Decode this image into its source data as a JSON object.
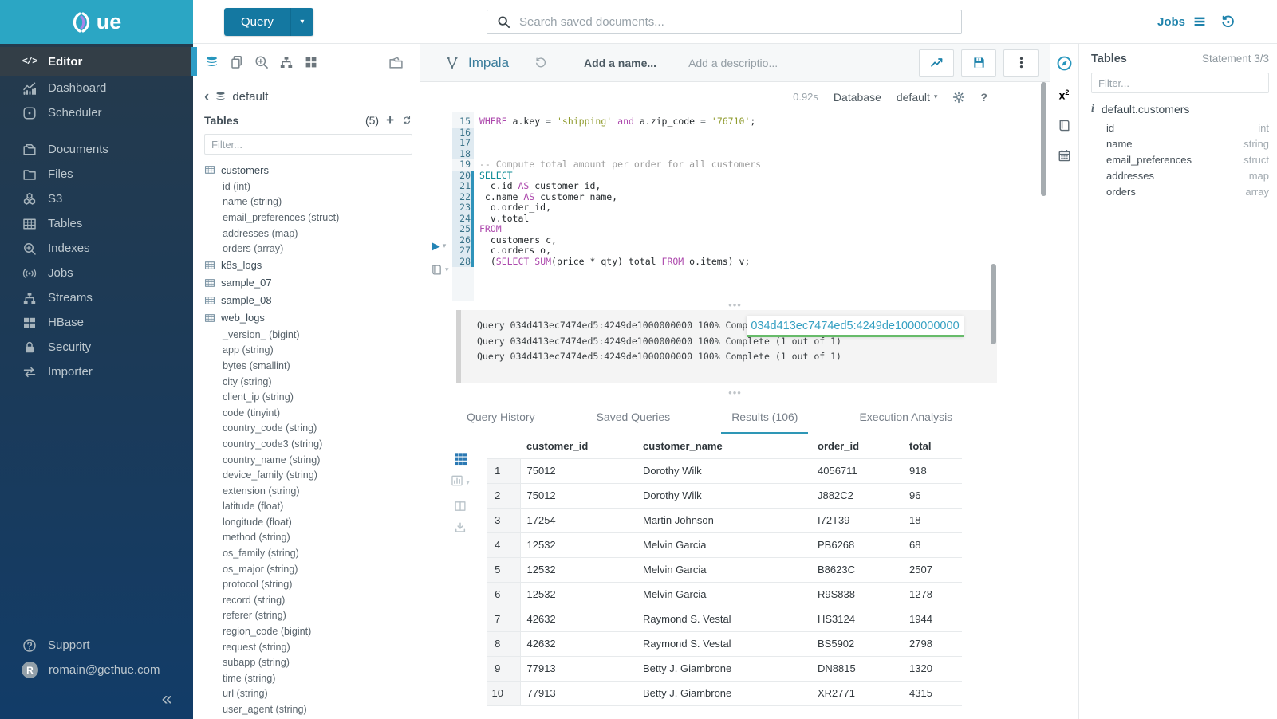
{
  "topbar": {
    "query_label": "Query",
    "search_placeholder": "Search saved documents...",
    "jobs_label": "Jobs"
  },
  "sidebar": {
    "logo_text": "ue",
    "items": [
      {
        "label": "Editor",
        "icon": "editor",
        "active": true
      },
      {
        "label": "Dashboard",
        "icon": "dashboard"
      },
      {
        "label": "Scheduler",
        "icon": "scheduler",
        "gap_after": true
      },
      {
        "label": "Documents",
        "icon": "documents"
      },
      {
        "label": "Files",
        "icon": "files"
      },
      {
        "label": "S3",
        "icon": "s3"
      },
      {
        "label": "Tables",
        "icon": "tables"
      },
      {
        "label": "Indexes",
        "icon": "indexes"
      },
      {
        "label": "Jobs",
        "icon": "jobs"
      },
      {
        "label": "Streams",
        "icon": "streams"
      },
      {
        "label": "HBase",
        "icon": "hbase"
      },
      {
        "label": "Security",
        "icon": "security"
      },
      {
        "label": "Importer",
        "icon": "importer"
      }
    ],
    "support_label": "Support",
    "user_email": "romain@gethue.com",
    "user_initial": "R",
    "collapse_glyph": "«"
  },
  "left_assist": {
    "database": "default",
    "title": "Tables",
    "count": "(5)",
    "filter_placeholder": "Filter...",
    "tables": [
      {
        "name": "customers",
        "columns": [
          "id (int)",
          "name (string)",
          "email_preferences (struct)",
          "addresses (map)",
          "orders (array)"
        ]
      },
      {
        "name": "k8s_logs",
        "columns": []
      },
      {
        "name": "sample_07",
        "columns": []
      },
      {
        "name": "sample_08",
        "columns": []
      },
      {
        "name": "web_logs",
        "columns": [
          "_version_ (bigint)",
          "app (string)",
          "bytes (smallint)",
          "city (string)",
          "client_ip (string)",
          "code (tinyint)",
          "country_code (string)",
          "country_code3 (string)",
          "country_name (string)",
          "device_family (string)",
          "extension (string)",
          "latitude (float)",
          "longitude (float)",
          "method (string)",
          "os_family (string)",
          "os_major (string)",
          "protocol (string)",
          "record (string)",
          "referer (string)",
          "region_code (bigint)",
          "request (string)",
          "subapp (string)",
          "time (string)",
          "url (string)",
          "user_agent (string)"
        ]
      }
    ]
  },
  "editor": {
    "engine": "Impala",
    "name_placeholder": "Add a name...",
    "description_placeholder": "Add a descriptio...",
    "duration": "0.92s",
    "database_label": "Database",
    "database_value": "default",
    "code_lines": [
      {
        "n": 15,
        "seg": [
          [
            "kw",
            "WHERE"
          ],
          [
            "pl",
            " a.key "
          ],
          [
            "op",
            "="
          ],
          [
            "pl",
            " "
          ],
          [
            "str",
            "'shipping'"
          ],
          [
            "pl",
            " "
          ],
          [
            "kw",
            "and"
          ],
          [
            "pl",
            " a.zip_code "
          ],
          [
            "op",
            "="
          ],
          [
            "pl",
            " "
          ],
          [
            "str",
            "'76710'"
          ],
          [
            "pl",
            ";"
          ]
        ]
      },
      {
        "n": 16,
        "hl": true,
        "seg": []
      },
      {
        "n": 17,
        "hl": true,
        "seg": []
      },
      {
        "n": 18,
        "hl": true,
        "seg": []
      },
      {
        "n": 19,
        "seg": [
          [
            "cm",
            "-- Compute total amount per order for all customers"
          ]
        ]
      },
      {
        "n": 20,
        "stmt": true,
        "seg": [
          [
            "kw2",
            "SELECT"
          ]
        ]
      },
      {
        "n": 21,
        "stmt": true,
        "seg": [
          [
            "pl",
            "  c.id "
          ],
          [
            "kw",
            "AS"
          ],
          [
            "pl",
            " customer_id,"
          ]
        ]
      },
      {
        "n": 22,
        "stmt": true,
        "seg": [
          [
            "pl",
            " c.name "
          ],
          [
            "kw",
            "AS"
          ],
          [
            "pl",
            " customer_name,"
          ]
        ]
      },
      {
        "n": 23,
        "stmt": true,
        "seg": [
          [
            "pl",
            "  o.order_id,"
          ]
        ]
      },
      {
        "n": 24,
        "stmt": true,
        "seg": [
          [
            "pl",
            "  v.total"
          ]
        ]
      },
      {
        "n": 25,
        "stmt": true,
        "seg": [
          [
            "kw",
            "FROM"
          ]
        ]
      },
      {
        "n": 26,
        "stmt": true,
        "seg": [
          [
            "pl",
            "  customers c,"
          ]
        ]
      },
      {
        "n": 27,
        "stmt": true,
        "seg": [
          [
            "pl",
            "  c.orders o,"
          ]
        ]
      },
      {
        "n": 28,
        "stmt": true,
        "seg": [
          [
            "pl",
            "  ("
          ],
          [
            "kw",
            "SELECT"
          ],
          [
            "pl",
            " "
          ],
          [
            "kw",
            "SUM"
          ],
          [
            "pl",
            "(price * qty) total "
          ],
          [
            "kw",
            "FROM"
          ],
          [
            "pl",
            " o.items) v;"
          ]
        ]
      }
    ]
  },
  "log": {
    "lines": [
      "Query 034d413ec7474ed5:4249de1000000000 100% Complete (1 out of 1)",
      "Query 034d413ec7474ed5:4249de1000000000 100% Complete (1 out of 1)",
      "Query 034d413ec7474ed5:4249de1000000000 100% Complete (1 out of 1)"
    ],
    "tooltip_text": "034d413ec7474ed5:4249de1000000000"
  },
  "tabs": {
    "items": [
      "Query History",
      "Saved Queries",
      "Results (106)",
      "Execution Analysis"
    ],
    "active_index": 2
  },
  "results": {
    "columns": [
      "customer_id",
      "customer_name",
      "order_id",
      "total"
    ],
    "rows": [
      [
        "1",
        "75012",
        "Dorothy Wilk",
        "4056711",
        "918"
      ],
      [
        "2",
        "75012",
        "Dorothy Wilk",
        "J882C2",
        "96"
      ],
      [
        "3",
        "17254",
        "Martin Johnson",
        "I72T39",
        "18"
      ],
      [
        "4",
        "12532",
        "Melvin Garcia",
        "PB6268",
        "68"
      ],
      [
        "5",
        "12532",
        "Melvin Garcia",
        "B8623C",
        "2507"
      ],
      [
        "6",
        "12532",
        "Melvin Garcia",
        "R9S838",
        "1278"
      ],
      [
        "7",
        "42632",
        "Raymond S. Vestal",
        "HS3124",
        "1944"
      ],
      [
        "8",
        "42632",
        "Raymond S. Vestal",
        "BS5902",
        "2798"
      ],
      [
        "9",
        "77913",
        "Betty J. Giambrone",
        "DN8815",
        "1320"
      ],
      [
        "10",
        "77913",
        "Betty J. Giambrone",
        "XR2771",
        "4315"
      ]
    ]
  },
  "right_assist": {
    "title": "Tables",
    "statement": "Statement 3/3",
    "filter_placeholder": "Filter...",
    "table_name": "default.customers",
    "columns": [
      {
        "name": "id",
        "type": "int"
      },
      {
        "name": "name",
        "type": "string"
      },
      {
        "name": "email_preferences",
        "type": "struct"
      },
      {
        "name": "addresses",
        "type": "map"
      },
      {
        "name": "orders",
        "type": "array"
      }
    ]
  },
  "colors": {
    "brand_teal": "#2ba6c4",
    "hue_blue": "#1478a1",
    "link_blue": "#1d82ab",
    "active_tab_underline": "#2e97b6",
    "tooltip_green": "#67bb6a",
    "keyword_purple": "#ad49ad",
    "keyword_teal": "#0f8c96",
    "string_olive": "#8f9b2d"
  }
}
